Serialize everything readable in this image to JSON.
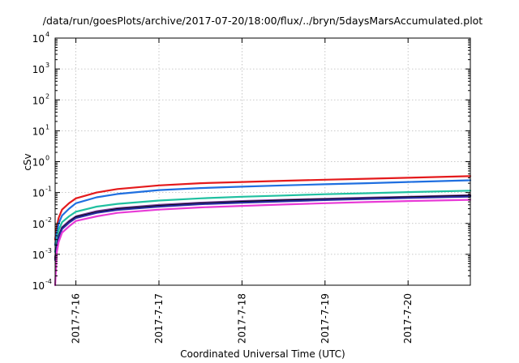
{
  "chart_data": {
    "type": "line",
    "title": "/data/run/goesPlots/archive/2017-07-20/18:00/flux/../bryn/5daysMarsAccumulated.plot",
    "xlabel": "Coordinated Universal Time (UTC)",
    "ylabel": "cSv",
    "y_scale": "log",
    "grid": true,
    "ylim": [
      0.0001,
      10000
    ],
    "xlim": [
      "2017-07-15 18:00",
      "2017-07-20 18:00"
    ],
    "y_ticks": [
      {
        "base": "10",
        "exp": "-4",
        "value": 0.0001
      },
      {
        "base": "10",
        "exp": "-3",
        "value": 0.001
      },
      {
        "base": "10",
        "exp": "-2",
        "value": 0.01
      },
      {
        "base": "10",
        "exp": "-1",
        "value": 0.1
      },
      {
        "base": "10",
        "exp": "0",
        "value": 1
      },
      {
        "base": "10",
        "exp": "1",
        "value": 10
      },
      {
        "base": "10",
        "exp": "2",
        "value": 100
      },
      {
        "base": "10",
        "exp": "3",
        "value": 1000
      },
      {
        "base": "10",
        "exp": "4",
        "value": 10000
      }
    ],
    "x_ticks": [
      {
        "label": "2017-7-16",
        "value": "2017-07-16 00:00"
      },
      {
        "label": "2017-7-17",
        "value": "2017-07-17 00:00"
      },
      {
        "label": "2017-7-18",
        "value": "2017-07-18 00:00"
      },
      {
        "label": "2017-7-19",
        "value": "2017-07-19 00:00"
      },
      {
        "label": "2017-7-20",
        "value": "2017-07-20 00:00"
      }
    ],
    "series": [
      {
        "color": "#e41a1c",
        "x": [
          "2017-07-15 18:00",
          "2017-07-15 18:30",
          "2017-07-15 19:00",
          "2017-07-15 20:00",
          "2017-07-15 22:00",
          "2017-07-16 00:00",
          "2017-07-16 06:00",
          "2017-07-16 12:00",
          "2017-07-17 00:00",
          "2017-07-17 12:00",
          "2017-07-18 00:00",
          "2017-07-18 12:00",
          "2017-07-19 00:00",
          "2017-07-19 12:00",
          "2017-07-20 00:00",
          "2017-07-20 18:00"
        ],
        "values": [
          0.003,
          0.008,
          0.015,
          0.028,
          0.045,
          0.065,
          0.1,
          0.13,
          0.17,
          0.2,
          0.22,
          0.24,
          0.26,
          0.28,
          0.3,
          0.34
        ]
      },
      {
        "color": "#1f6fe0",
        "x": [
          "2017-07-15 18:00",
          "2017-07-15 18:30",
          "2017-07-15 19:00",
          "2017-07-15 20:00",
          "2017-07-15 22:00",
          "2017-07-16 00:00",
          "2017-07-16 06:00",
          "2017-07-16 12:00",
          "2017-07-17 00:00",
          "2017-07-17 12:00",
          "2017-07-18 00:00",
          "2017-07-18 12:00",
          "2017-07-19 00:00",
          "2017-07-19 12:00",
          "2017-07-20 00:00",
          "2017-07-20 18:00"
        ],
        "values": [
          0.002,
          0.005,
          0.01,
          0.018,
          0.03,
          0.045,
          0.07,
          0.09,
          0.12,
          0.14,
          0.155,
          0.17,
          0.185,
          0.2,
          0.22,
          0.25
        ]
      },
      {
        "color": "#20c0a0",
        "x": [
          "2017-07-15 18:00",
          "2017-07-15 18:30",
          "2017-07-15 19:00",
          "2017-07-15 20:00",
          "2017-07-15 22:00",
          "2017-07-16 00:00",
          "2017-07-16 06:00",
          "2017-07-16 12:00",
          "2017-07-17 00:00",
          "2017-07-17 12:00",
          "2017-07-18 00:00",
          "2017-07-18 12:00",
          "2017-07-19 00:00",
          "2017-07-19 12:00",
          "2017-07-20 00:00",
          "2017-07-20 18:00"
        ],
        "values": [
          0.0012,
          0.003,
          0.006,
          0.011,
          0.017,
          0.024,
          0.035,
          0.043,
          0.055,
          0.065,
          0.073,
          0.08,
          0.088,
          0.095,
          0.103,
          0.115
        ]
      },
      {
        "color": "#7b3fa0",
        "x": [
          "2017-07-15 18:00",
          "2017-07-15 18:30",
          "2017-07-15 19:00",
          "2017-07-15 20:00",
          "2017-07-15 22:00",
          "2017-07-16 00:00",
          "2017-07-16 06:00",
          "2017-07-16 12:00",
          "2017-07-17 00:00",
          "2017-07-17 12:00",
          "2017-07-18 00:00",
          "2017-07-18 12:00",
          "2017-07-19 00:00",
          "2017-07-19 12:00",
          "2017-07-20 00:00",
          "2017-07-20 18:00"
        ],
        "values": [
          0.0008,
          0.002,
          0.004,
          0.0075,
          0.012,
          0.017,
          0.025,
          0.031,
          0.04,
          0.047,
          0.053,
          0.058,
          0.063,
          0.068,
          0.073,
          0.082
        ]
      },
      {
        "color": "#000000",
        "x": [
          "2017-07-15 18:00",
          "2017-07-15 18:30",
          "2017-07-15 19:00",
          "2017-07-15 20:00",
          "2017-07-15 22:00",
          "2017-07-16 00:00",
          "2017-07-16 06:00",
          "2017-07-16 12:00",
          "2017-07-17 00:00",
          "2017-07-17 12:00",
          "2017-07-18 00:00",
          "2017-07-18 12:00",
          "2017-07-19 00:00",
          "2017-07-19 12:00",
          "2017-07-20 00:00",
          "2017-07-20 18:00"
        ],
        "values": [
          0.0007,
          0.0018,
          0.0036,
          0.007,
          0.011,
          0.016,
          0.023,
          0.029,
          0.037,
          0.044,
          0.05,
          0.055,
          0.06,
          0.065,
          0.07,
          0.078
        ]
      },
      {
        "color": "#2a2aa0",
        "x": [
          "2017-07-15 18:00",
          "2017-07-15 18:30",
          "2017-07-15 19:00",
          "2017-07-15 20:00",
          "2017-07-15 22:00",
          "2017-07-16 00:00",
          "2017-07-16 06:00",
          "2017-07-16 12:00",
          "2017-07-17 00:00",
          "2017-07-17 12:00",
          "2017-07-18 00:00",
          "2017-07-18 12:00",
          "2017-07-19 00:00",
          "2017-07-19 12:00",
          "2017-07-20 00:00",
          "2017-07-20 18:00"
        ],
        "values": [
          0.00065,
          0.0017,
          0.0034,
          0.0066,
          0.0105,
          0.015,
          0.022,
          0.0275,
          0.035,
          0.042,
          0.047,
          0.052,
          0.057,
          0.062,
          0.067,
          0.074
        ]
      },
      {
        "color": "#e83ad6",
        "x": [
          "2017-07-15 18:00",
          "2017-07-15 18:30",
          "2017-07-15 19:00",
          "2017-07-15 20:00",
          "2017-07-15 22:00",
          "2017-07-16 00:00",
          "2017-07-16 06:00",
          "2017-07-16 12:00",
          "2017-07-17 00:00",
          "2017-07-17 12:00",
          "2017-07-18 00:00",
          "2017-07-18 12:00",
          "2017-07-19 00:00",
          "2017-07-19 12:00",
          "2017-07-20 00:00",
          "2017-07-20 18:00"
        ],
        "values": [
          0.0001,
          0.0012,
          0.0025,
          0.005,
          0.008,
          0.012,
          0.017,
          0.022,
          0.028,
          0.033,
          0.037,
          0.041,
          0.045,
          0.049,
          0.053,
          0.058
        ]
      }
    ]
  }
}
